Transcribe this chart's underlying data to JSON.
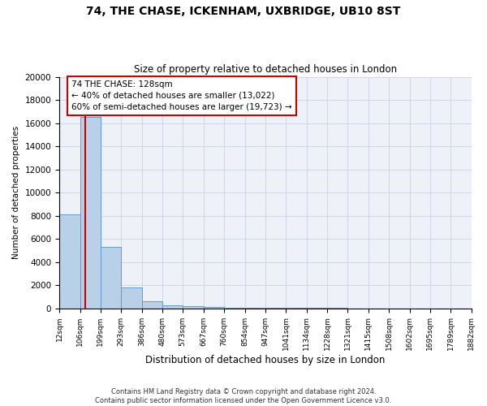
{
  "title": "74, THE CHASE, ICKENHAM, UXBRIDGE, UB10 8ST",
  "subtitle": "Size of property relative to detached houses in London",
  "xlabel": "Distribution of detached houses by size in London",
  "ylabel": "Number of detached properties",
  "bar_color": "#b8d0e8",
  "bar_edge_color": "#6699cc",
  "bar_heights": [
    8100,
    16500,
    5300,
    1800,
    600,
    250,
    150,
    100,
    50,
    30,
    20,
    15,
    10,
    8,
    5,
    5,
    3,
    3,
    2,
    2
  ],
  "bin_edges": [
    12,
    106,
    199,
    293,
    386,
    480,
    573,
    667,
    760,
    854,
    947,
    1041,
    1134,
    1228,
    1321,
    1415,
    1508,
    1602,
    1695,
    1789,
    1882
  ],
  "tick_labels": [
    "12sqm",
    "106sqm",
    "199sqm",
    "293sqm",
    "386sqm",
    "480sqm",
    "573sqm",
    "667sqm",
    "760sqm",
    "854sqm",
    "947sqm",
    "1041sqm",
    "1134sqm",
    "1228sqm",
    "1321sqm",
    "1415sqm",
    "1508sqm",
    "1602sqm",
    "1695sqm",
    "1789sqm",
    "1882sqm"
  ],
  "ylim": [
    0,
    20000
  ],
  "yticks": [
    0,
    2000,
    4000,
    6000,
    8000,
    10000,
    12000,
    14000,
    16000,
    18000,
    20000
  ],
  "property_line_x": 128,
  "annotation_line1": "74 THE CHASE: 128sqm",
  "annotation_line2": "← 40% of detached houses are smaller (13,022)",
  "annotation_line3": "60% of semi-detached houses are larger (19,723) →",
  "footer_line1": "Contains HM Land Registry data © Crown copyright and database right 2024.",
  "footer_line2": "Contains public sector information licensed under the Open Government Licence v3.0.",
  "grid_color": "#d0d8e8",
  "bg_color": "#eef2f8",
  "red_line_color": "#cc0000",
  "box_edge_color": "#cc0000"
}
